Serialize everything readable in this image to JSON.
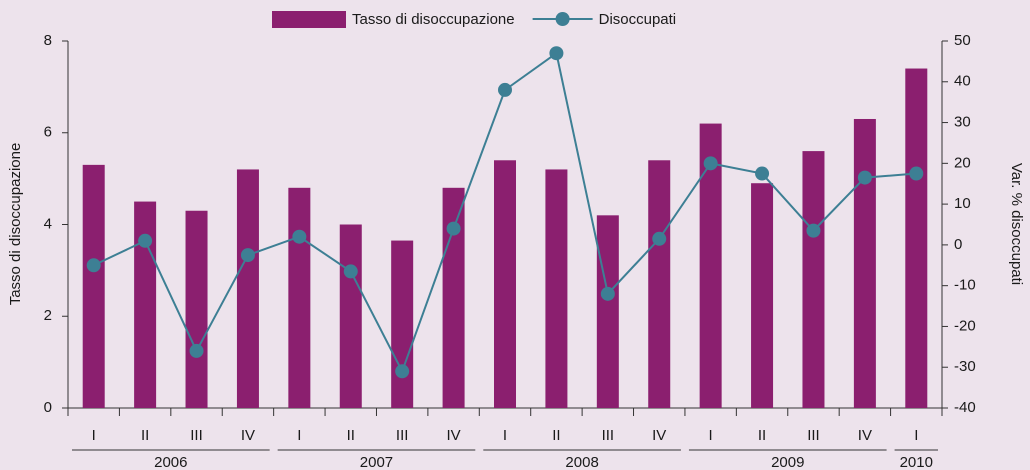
{
  "chart_data": {
    "type": "bar_line",
    "groups": [
      {
        "label": "2006",
        "categories": [
          "I",
          "II",
          "III",
          "IV"
        ]
      },
      {
        "label": "2007",
        "categories": [
          "I",
          "II",
          "III",
          "IV"
        ]
      },
      {
        "label": "2008",
        "categories": [
          "I",
          "II",
          "III",
          "IV"
        ]
      },
      {
        "label": "2009",
        "categories": [
          "I",
          "II",
          "III",
          "IV"
        ]
      },
      {
        "label": "2010",
        "categories": [
          "I"
        ]
      }
    ],
    "series": [
      {
        "name": "Tasso di disoccupazione",
        "type": "bar",
        "color": "#8b1f6f",
        "values": [
          5.3,
          4.5,
          4.3,
          5.2,
          4.8,
          4.0,
          3.65,
          4.8,
          5.4,
          5.2,
          4.2,
          5.4,
          6.2,
          4.9,
          5.6,
          6.3,
          7.4
        ]
      },
      {
        "name": "Disoccupati",
        "type": "line",
        "axis": "y2",
        "color": "#3d7f94",
        "values": [
          -5,
          1,
          -26,
          -2.5,
          2,
          -6.5,
          -31,
          4,
          38,
          47,
          -12,
          1.5,
          20,
          17.5,
          3.5,
          16.5,
          17.5
        ]
      }
    ],
    "ylabel": "Tasso di disoccupazione",
    "y2label": "Var. % disoccupati",
    "ylim": [
      0,
      8
    ],
    "yticks": [
      0,
      2,
      4,
      6,
      8
    ],
    "y2lim": [
      -40,
      50
    ],
    "y2ticks": [
      -40,
      -30,
      -20,
      -10,
      0,
      10,
      20,
      30,
      40,
      50
    ],
    "legend": "top"
  }
}
